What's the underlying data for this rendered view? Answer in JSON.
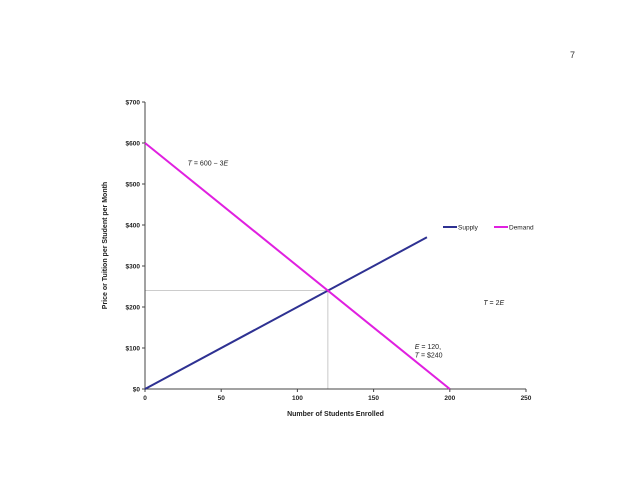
{
  "page": {
    "number": "7"
  },
  "chart_data": {
    "type": "line",
    "title": "",
    "xlabel": "Number of Students Enrolled",
    "ylabel": "Price or Tuition per Student per Month",
    "xlim": [
      0,
      250
    ],
    "ylim": [
      0,
      700
    ],
    "xticks": [
      0,
      50,
      100,
      150,
      200,
      250
    ],
    "xtick_labels": [
      "0",
      "50",
      "100",
      "150",
      "200",
      "250"
    ],
    "yticks": [
      0,
      100,
      200,
      300,
      400,
      500,
      600,
      700
    ],
    "ytick_labels": [
      "$0",
      "$100",
      "$200",
      "$300",
      "$400",
      "$500",
      "$600",
      "$700"
    ],
    "grid": false,
    "legend_position": "right",
    "series": [
      {
        "name": "Supply",
        "color": "#2e3192",
        "x": [
          0,
          185
        ],
        "y": [
          0,
          370
        ]
      },
      {
        "name": "Demand",
        "color": "#e020e0",
        "x": [
          0,
          200
        ],
        "y": [
          600,
          0
        ]
      }
    ],
    "equilibrium": {
      "x": 120,
      "y": 240,
      "guide_color": "#bbbbbb"
    },
    "annotations": [
      {
        "id": "demand-eq",
        "parts": [
          [
            "T",
            true
          ],
          [
            " = 600  − 3",
            false
          ],
          [
            "E",
            true
          ]
        ],
        "x": 28,
        "y": 545
      },
      {
        "id": "supply-eq",
        "parts": [
          [
            "T",
            true
          ],
          [
            " = 2",
            false
          ],
          [
            "E",
            true
          ]
        ],
        "x": 222,
        "y": 205
      },
      {
        "id": "eq-line1",
        "parts": [
          [
            "E",
            true
          ],
          [
            " = 120,",
            false
          ]
        ],
        "x": 177,
        "y": 98
      },
      {
        "id": "eq-line2",
        "parts": [
          [
            "T",
            true
          ],
          [
            " = $240",
            false
          ]
        ],
        "x": 177,
        "y": 77
      }
    ]
  }
}
